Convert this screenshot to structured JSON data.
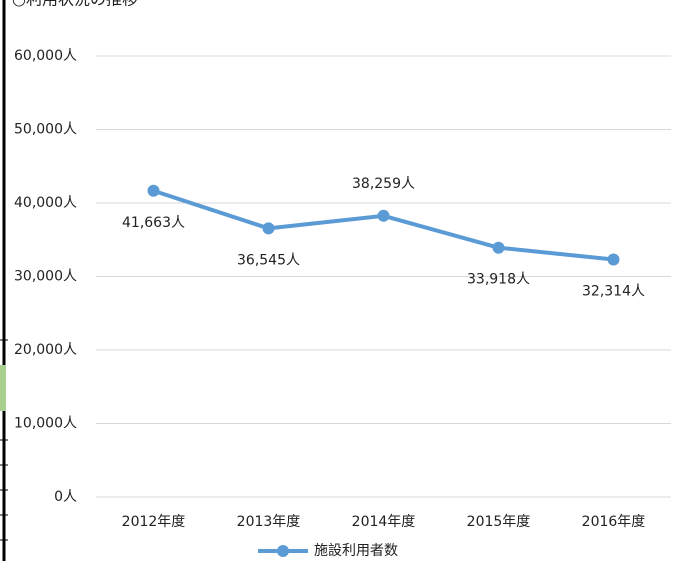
{
  "chart_data": {
    "type": "line",
    "title": "○利用状況の推移",
    "categories": [
      "2012年度",
      "2013年度",
      "2014年度",
      "2015年度",
      "2016年度"
    ],
    "series": [
      {
        "name": "施設利用者数",
        "color": "#5b9bd5",
        "values": [
          41663,
          36545,
          38259,
          33918,
          32314
        ],
        "value_labels": [
          "41,663人",
          "36,545人",
          "38,259人",
          "33,918人",
          "32,314人"
        ]
      }
    ],
    "ylim": [
      0,
      60000
    ],
    "yticks": [
      {
        "value": 0,
        "label": "0人"
      },
      {
        "value": 10000,
        "label": "10,000人"
      },
      {
        "value": 20000,
        "label": "20,000人"
      },
      {
        "value": 30000,
        "label": "30,000人"
      },
      {
        "value": 40000,
        "label": "40,000人"
      },
      {
        "value": 50000,
        "label": "50,000人"
      },
      {
        "value": 60000,
        "label": "60,000人"
      }
    ],
    "grid": true,
    "legend": "bottom"
  }
}
